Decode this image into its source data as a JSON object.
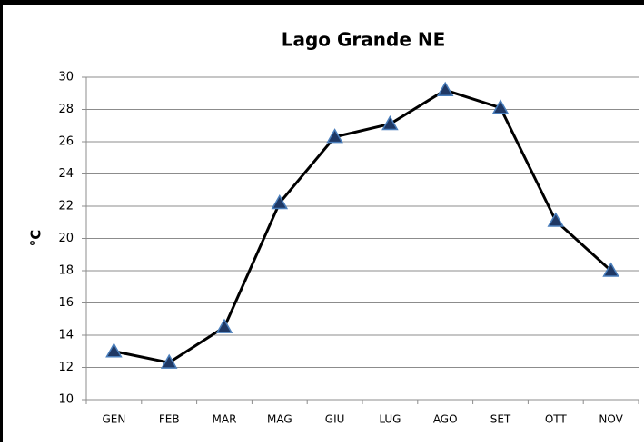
{
  "chart_data": {
    "type": "line",
    "title": "Lago Grande NE",
    "y_label": "°C",
    "categories": [
      "GEN",
      "FEB",
      "MAR",
      "MAG",
      "GIU",
      "LUG",
      "AGO",
      "SET",
      "OTT",
      "NOV"
    ],
    "values": [
      13.0,
      12.3,
      14.5,
      22.2,
      26.3,
      27.1,
      29.2,
      28.1,
      21.1,
      18.0
    ],
    "color": "#000000",
    "marker_color": "#1f3864",
    "ylim": [
      10,
      30
    ],
    "yticks": [
      10,
      12,
      14,
      16,
      18,
      20,
      22,
      24,
      26,
      28,
      30
    ],
    "grid": true
  }
}
